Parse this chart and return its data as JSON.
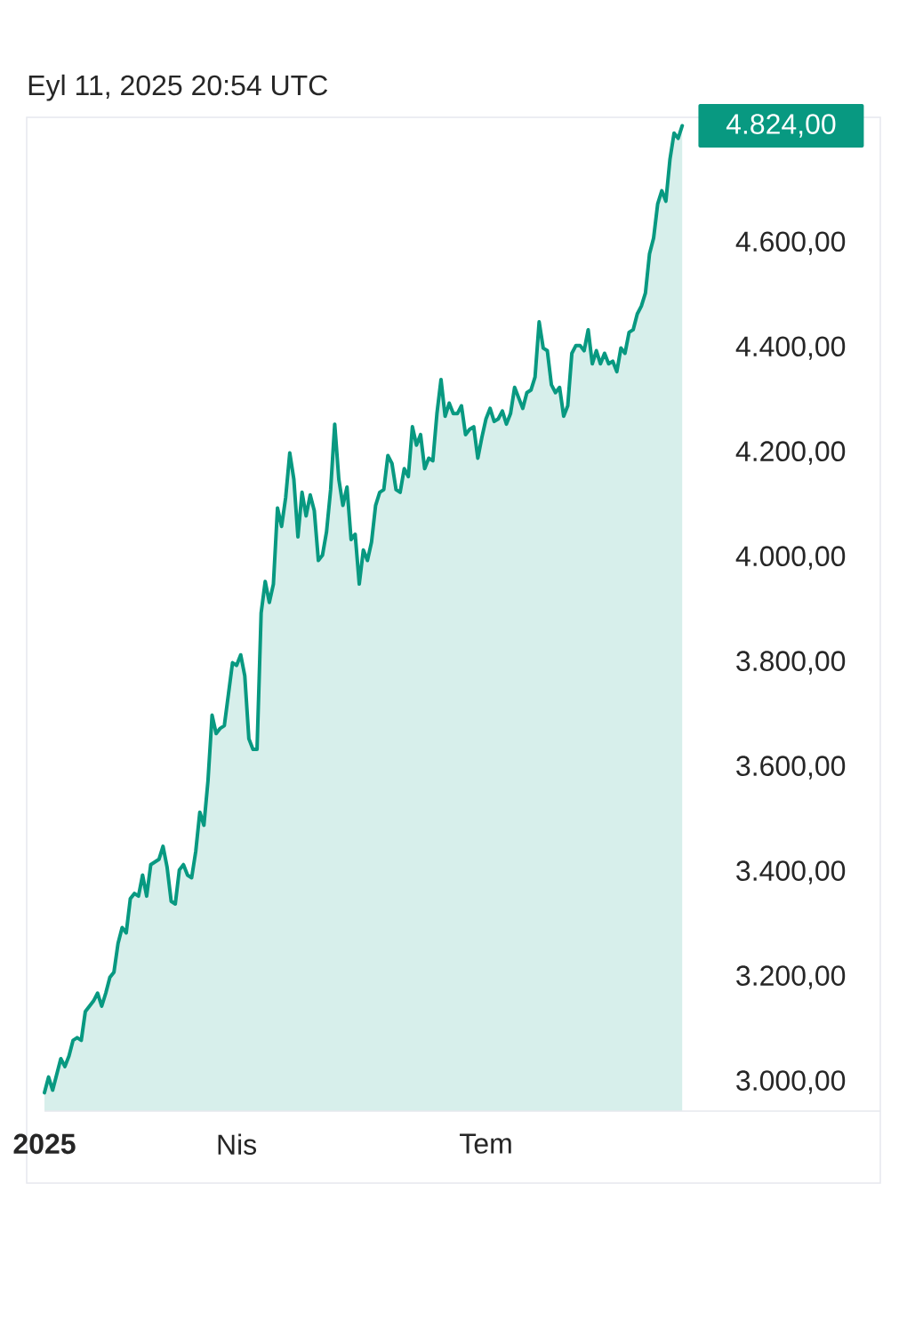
{
  "chart_data": {
    "type": "area",
    "title": "Eyl 11, 2025 20:54 UTC",
    "color": "#089981",
    "categories": [
      "2025",
      null,
      null,
      null,
      null,
      null,
      null,
      null,
      null,
      null,
      null,
      null,
      null,
      null,
      null,
      null,
      null,
      null,
      null,
      null,
      null,
      null,
      null,
      null,
      null,
      null,
      null,
      null,
      null,
      null,
      null,
      null,
      null,
      null,
      null,
      null,
      null,
      null,
      null,
      null,
      null,
      null,
      null,
      null,
      null,
      null,
      null,
      "Nis",
      null,
      null,
      null,
      null,
      null,
      null,
      null,
      null,
      null,
      null,
      null,
      null,
      null,
      null,
      null,
      null,
      null,
      null,
      null,
      null,
      null,
      null,
      null,
      null,
      null,
      null,
      null,
      null,
      null,
      null,
      null,
      null,
      null,
      null,
      null,
      null,
      null,
      null,
      null,
      null,
      null,
      null,
      null,
      null,
      null,
      null,
      null,
      null,
      null,
      null,
      null,
      null,
      null,
      null,
      null,
      null,
      null,
      null,
      null,
      null,
      "Tem",
      null,
      null,
      null,
      null,
      null,
      null,
      null,
      null,
      null,
      null,
      null,
      null,
      null,
      null,
      null,
      null,
      null,
      null,
      null,
      null,
      null,
      null,
      null,
      null,
      null,
      null,
      null,
      null,
      null,
      null,
      null,
      null,
      null,
      null,
      null,
      null,
      null,
      null,
      null,
      null,
      null,
      null,
      null,
      null,
      null,
      null,
      null,
      null
    ],
    "values": [
      2980,
      3010,
      2985,
      3015,
      3045,
      3030,
      3050,
      3080,
      3085,
      3080,
      3135,
      3145,
      3155,
      3170,
      3145,
      3170,
      3200,
      3210,
      3265,
      3295,
      3285,
      3350,
      3360,
      3355,
      3395,
      3355,
      3415,
      3420,
      3425,
      3450,
      3410,
      3345,
      3340,
      3405,
      3415,
      3395,
      3390,
      3440,
      3515,
      3490,
      3575,
      3700,
      3665,
      3675,
      3680,
      3740,
      3800,
      3795,
      3815,
      3775,
      3655,
      3635,
      3635,
      3895,
      3955,
      3915,
      3950,
      4095,
      4060,
      4115,
      4200,
      4150,
      4040,
      4125,
      4080,
      4120,
      4090,
      3995,
      4005,
      4050,
      4130,
      4255,
      4150,
      4100,
      4135,
      4035,
      4045,
      3950,
      4015,
      3995,
      4030,
      4100,
      4125,
      4130,
      4195,
      4180,
      4130,
      4125,
      4170,
      4155,
      4250,
      4215,
      4235,
      4170,
      4190,
      4185,
      4275,
      4340,
      4270,
      4295,
      4275,
      4275,
      4290,
      4235,
      4245,
      4250,
      4190,
      4230,
      4265,
      4285,
      4260,
      4265,
      4280,
      4255,
      4275,
      4325,
      4305,
      4285,
      4315,
      4320,
      4345,
      4450,
      4400,
      4395,
      4330,
      4315,
      4325,
      4270,
      4290,
      4390,
      4405,
      4405,
      4395,
      4435,
      4370,
      4395,
      4370,
      4390,
      4370,
      4375,
      4355,
      4400,
      4390,
      4430,
      4435,
      4465,
      4480,
      4505,
      4580,
      4610,
      4675,
      4700,
      4680,
      4760,
      4810,
      4800,
      4824
    ],
    "ylim": [
      2945,
      4840
    ],
    "yticks": [
      {
        "value": 3000,
        "label": "3.000,00"
      },
      {
        "value": 3200,
        "label": "3.200,00"
      },
      {
        "value": 3400,
        "label": "3.400,00"
      },
      {
        "value": 3600,
        "label": "3.600,00"
      },
      {
        "value": 3800,
        "label": "3.800,00"
      },
      {
        "value": 4000,
        "label": "4.000,00"
      },
      {
        "value": 4200,
        "label": "4.200,00"
      },
      {
        "value": 4400,
        "label": "4.400,00"
      },
      {
        "value": 4600,
        "label": "4.600,00"
      }
    ],
    "annotations": [
      "4.824,00"
    ]
  }
}
